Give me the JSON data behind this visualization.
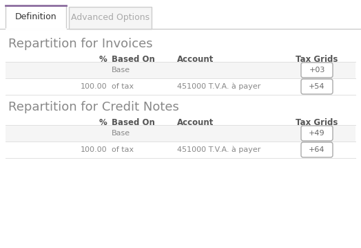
{
  "bg_color": "#ffffff",
  "tab_active": "Definition",
  "tab_inactive": "Advanced Options",
  "tab_active_color": "#ffffff",
  "tab_inactive_color": "#f5f5f5",
  "tab_border_color": "#cccccc",
  "tab_active_border_color": "#8c6d9f",
  "tab_text_active_color": "#333333",
  "tab_text_inactive_color": "#aaaaaa",
  "section1_title": "Repartition for Invoices",
  "section2_title": "Repartition for Credit Notes",
  "section_title_color": "#888888",
  "col_headers": [
    "%",
    "Based On",
    "Account",
    "Tax Grids"
  ],
  "col_header_color": "#555555",
  "row_stripe_color": "#f5f5f5",
  "row_white_color": "#ffffff",
  "invoices_rows": [
    {
      "percent": "",
      "based_on": "Base",
      "account": "",
      "tax_grid": "+03"
    },
    {
      "percent": "100.00",
      "based_on": "of tax",
      "account": "451000 T.V.A. à payer",
      "tax_grid": "+54"
    }
  ],
  "credit_notes_rows": [
    {
      "percent": "",
      "based_on": "Base",
      "account": "",
      "tax_grid": "+49"
    },
    {
      "percent": "100.00",
      "based_on": "of tax",
      "account": "451000 T.V.A. à payer",
      "tax_grid": "+64"
    }
  ],
  "row_text_color": "#888888",
  "tag_border_color": "#aaaaaa",
  "tag_text_color": "#666666",
  "separator_color": "#e0e0e0",
  "figw": 5.24,
  "figh": 3.61,
  "dpi": 100
}
